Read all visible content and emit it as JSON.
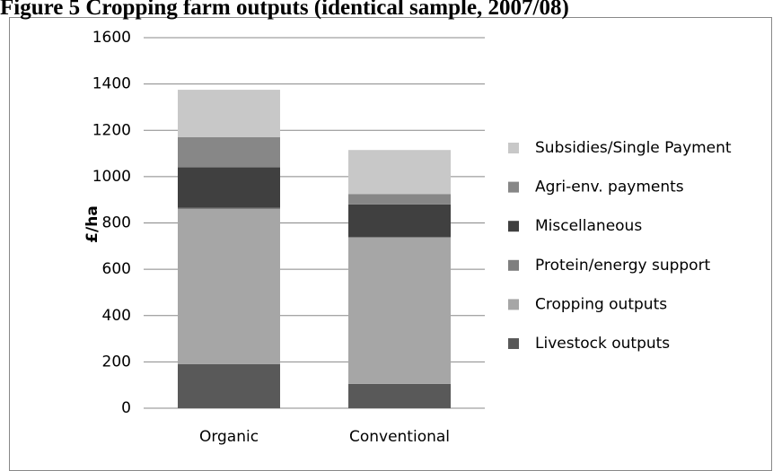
{
  "chart_data": {
    "type": "stacked_bar",
    "title": "Figure 5 Cropping farm outputs (identical sample, 2007/08)",
    "y_label": "£/ha",
    "categories": [
      "Organic",
      "Conventional"
    ],
    "series": [
      {
        "name": "Livestock outputs",
        "color": "#595959",
        "values": [
          190,
          105
        ]
      },
      {
        "name": "Cropping outputs",
        "color": "#a6a6a6",
        "values": [
          670,
          630
        ]
      },
      {
        "name": "Protein/energy support",
        "color": "#7f7f7f",
        "values": [
          5,
          5
        ]
      },
      {
        "name": "Miscellaneous",
        "color": "#404040",
        "values": [
          175,
          140
        ]
      },
      {
        "name": "Agri-env. payments",
        "color": "#878787",
        "values": [
          130,
          45
        ]
      },
      {
        "name": "Subsidies/Single Payment",
        "color": "#c8c8c8",
        "values": [
          205,
          190
        ]
      }
    ],
    "ylim": [
      0,
      1600
    ],
    "yticks": [
      0,
      200,
      400,
      600,
      800,
      1000,
      1200,
      1400,
      1600
    ],
    "grid": true,
    "legend": "right"
  }
}
